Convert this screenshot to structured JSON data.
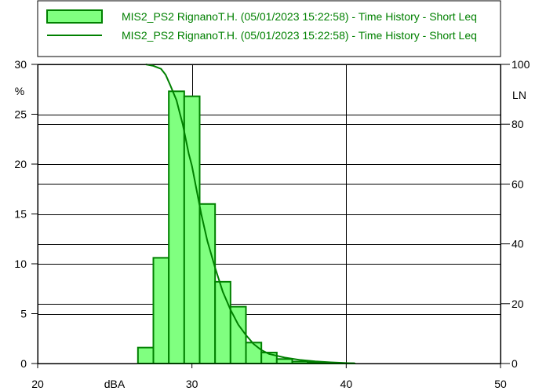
{
  "legend": {
    "entries": [
      {
        "label": "MIS2_PS2 RignanoT.H. (05/01/2023 15:22:58) - Time History - Short Leq",
        "kind": "bar"
      },
      {
        "label": "MIS2_PS2 RignanoT.H. (05/01/2023 15:22:58) - Time History - Short Leq",
        "kind": "line"
      }
    ]
  },
  "colors": {
    "bar_fill": "#80ff80",
    "bar_stroke": "#008000",
    "line": "#008000",
    "legend_text": "#008000",
    "grid": "#000000"
  },
  "chart_data": {
    "type": "bar",
    "xlabel": "dBA",
    "ylabel_left": "%",
    "ylabel_right": "LN",
    "xlim": [
      20,
      50
    ],
    "ylim_left": [
      0,
      30
    ],
    "ylim_right": [
      0,
      100
    ],
    "x_ticks": [
      20,
      30,
      40,
      50
    ],
    "y_left_ticks": [
      0,
      5,
      10,
      15,
      20,
      25,
      30
    ],
    "y_right_ticks": [
      0,
      20,
      40,
      60,
      80,
      100
    ],
    "grid": true,
    "legend_position": "top",
    "bin_width": 1,
    "bins": [
      {
        "x0": 26.5,
        "value": 1.6
      },
      {
        "x0": 27.5,
        "value": 10.6
      },
      {
        "x0": 28.5,
        "value": 27.3
      },
      {
        "x0": 29.5,
        "value": 26.8
      },
      {
        "x0": 30.5,
        "value": 16.0
      },
      {
        "x0": 31.5,
        "value": 8.2
      },
      {
        "x0": 32.5,
        "value": 5.7
      },
      {
        "x0": 33.5,
        "value": 2.1
      },
      {
        "x0": 34.5,
        "value": 1.1
      },
      {
        "x0": 35.5,
        "value": 0.45
      },
      {
        "x0": 36.5,
        "value": 0.2
      },
      {
        "x0": 37.5,
        "value": 0.12
      },
      {
        "x0": 38.5,
        "value": 0.06
      },
      {
        "x0": 39.5,
        "value": 0.03
      }
    ],
    "ln_curve": {
      "x": [
        27.0,
        27.5,
        28.0,
        28.3,
        28.6,
        29.0,
        29.2,
        29.4,
        29.6,
        29.8,
        30.0,
        30.3,
        30.6,
        31.0,
        31.5,
        32.0,
        32.5,
        33.0,
        33.5,
        34.0,
        34.5,
        35.0,
        36.0,
        37.0,
        38.0,
        39.0,
        40.0,
        40.6
      ],
      "y": [
        100,
        99.5,
        98.5,
        96.5,
        93,
        88,
        84,
        80,
        75,
        70,
        66,
        58,
        50,
        41,
        32,
        24,
        18,
        13,
        9.5,
        6.5,
        4.5,
        3.2,
        2.0,
        1.2,
        0.7,
        0.4,
        0.15,
        0
      ]
    }
  }
}
